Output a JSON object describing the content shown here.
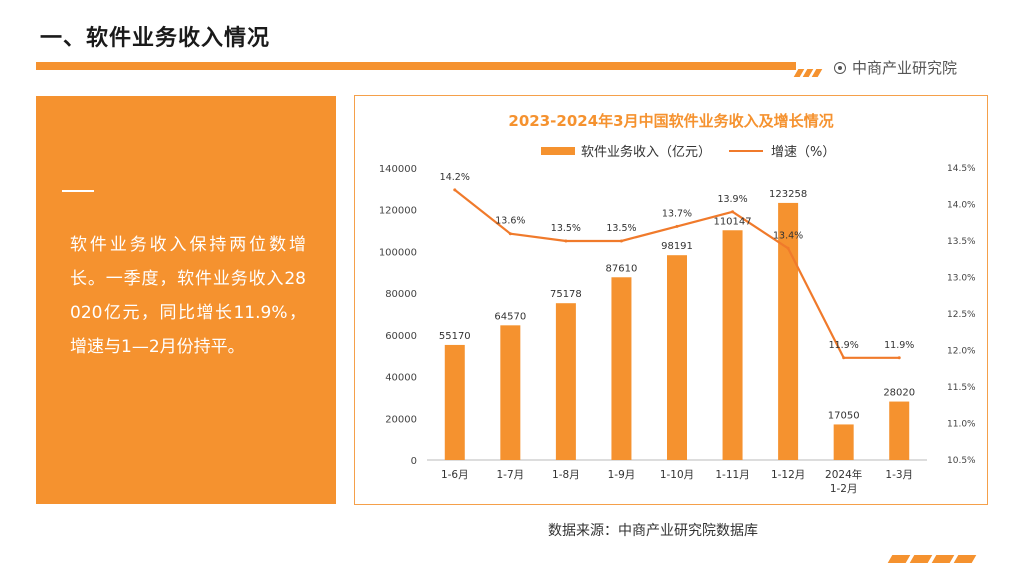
{
  "header": {
    "title": "一、软件业务收入情况",
    "brand": "中商产业研究院"
  },
  "panel": {
    "text": "软件业务收入保持两位数增长。一季度，软件业务收入28020亿元，同比增长11.9%，增速与1—2月份持平。"
  },
  "source": "数据来源：中商产业研究院数据库",
  "colors": {
    "accent": "#f5922f",
    "line": "#f07a2b"
  },
  "chart_data": {
    "type": "bar",
    "title": "2023-2024年3月中国软件业务收入及增长情况",
    "categories": [
      "1-6月",
      "1-7月",
      "1-8月",
      "1-9月",
      "1-10月",
      "1-11月",
      "1-12月",
      "2024年\n1-2月",
      "1-3月"
    ],
    "series": [
      {
        "name": "软件业务收入（亿元）",
        "type": "bar",
        "axis": "left",
        "values": [
          55170,
          64570,
          75178,
          87610,
          98191,
          110147,
          123258,
          17050,
          28020
        ]
      },
      {
        "name": "增速（%）",
        "type": "line",
        "axis": "right",
        "values": [
          14.2,
          13.6,
          13.5,
          13.5,
          13.7,
          13.9,
          13.4,
          11.9,
          11.9
        ]
      }
    ],
    "line_labels": [
      "14.2%",
      "13.6%",
      "13.5%",
      "13.5%",
      "13.7%",
      "13.9%",
      "13.4%",
      "11.9%",
      "11.9%"
    ],
    "ylim_left": [
      0,
      140000
    ],
    "yticks_left": [
      "0",
      "20000",
      "40000",
      "60000",
      "80000",
      "100000",
      "120000",
      "140000"
    ],
    "ylim_right": [
      10.5,
      14.5
    ],
    "yticks_right": [
      "10.5%",
      "11.0%",
      "11.5%",
      "12.0%",
      "12.5%",
      "13.0%",
      "13.5%",
      "14.0%",
      "14.5%"
    ],
    "legend": [
      "软件业务收入（亿元）",
      "增速（%）"
    ]
  }
}
